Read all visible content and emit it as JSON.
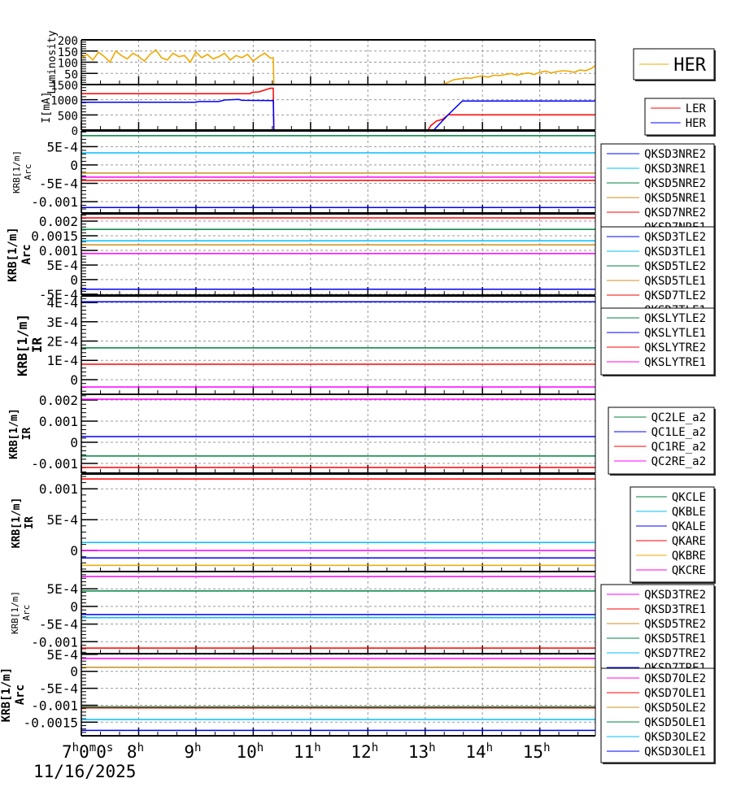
{
  "chart_data": {
    "type": "line",
    "title": "",
    "xlabel": "",
    "x_unit": "hour of day",
    "xlim": [
      7,
      15.97
    ],
    "date_label": "11/16/2025",
    "x_ticks": [
      {
        "v": 7,
        "parts": [
          [
            "7",
            "h"
          ],
          [
            "0",
            "m"
          ],
          [
            "0",
            "s"
          ]
        ]
      },
      {
        "v": 8,
        "parts": [
          [
            "8",
            "h"
          ]
        ]
      },
      {
        "v": 9,
        "parts": [
          [
            "9",
            "h"
          ]
        ]
      },
      {
        "v": 10,
        "parts": [
          [
            "10",
            "h"
          ]
        ]
      },
      {
        "v": 11,
        "parts": [
          [
            "11",
            "h"
          ]
        ]
      },
      {
        "v": 12,
        "parts": [
          [
            "12",
            "h"
          ]
        ]
      },
      {
        "v": 13,
        "parts": [
          [
            "13",
            "h"
          ]
        ]
      },
      {
        "v": 14,
        "parts": [
          [
            "14",
            "h"
          ]
        ]
      },
      {
        "v": 15,
        "parts": [
          [
            "15",
            "h"
          ]
        ]
      }
    ],
    "panels": [
      {
        "ylabel": [
          "Luminosity"
        ],
        "ylim": [
          0,
          200
        ],
        "yticks": [
          {
            "v": 200,
            "label": "200"
          },
          {
            "v": 150,
            "label": "150"
          },
          {
            "v": 100,
            "label": "100"
          },
          {
            "v": 50,
            "label": "50"
          }
        ],
        "series": [
          {
            "name": "HER",
            "color": "#f0a800",
            "x": [
              7.0,
              7.1,
              7.2,
              7.3,
              7.4,
              7.5,
              7.6,
              7.7,
              7.8,
              7.9,
              8.0,
              8.1,
              8.2,
              8.3,
              8.4,
              8.5,
              8.6,
              8.7,
              8.8,
              8.9,
              9.0,
              9.1,
              9.2,
              9.3,
              9.4,
              9.5,
              9.6,
              9.7,
              9.8,
              9.9,
              10.0,
              10.1,
              10.2,
              10.3,
              10.35,
              10.36,
              13.3,
              13.4,
              13.5,
              13.6,
              13.7,
              13.8,
              13.9,
              14.0,
              14.1,
              14.2,
              14.3,
              14.4,
              14.5,
              14.6,
              14.7,
              14.8,
              14.9,
              15.0,
              15.1,
              15.2,
              15.3,
              15.4,
              15.5,
              15.6,
              15.7,
              15.8,
              15.9,
              15.97
            ],
            "y": [
              120,
              135,
              110,
              145,
              125,
              100,
              150,
              130,
              115,
              140,
              125,
              105,
              135,
              155,
              120,
              110,
              140,
              125,
              130,
              100,
              145,
              120,
              135,
              115,
              125,
              140,
              110,
              130,
              120,
              135,
              105,
              125,
              140,
              118,
              120,
              0,
              0,
              10,
              22,
              25,
              30,
              28,
              35,
              38,
              33,
              42,
              40,
              45,
              50,
              42,
              48,
              52,
              45,
              55,
              60,
              52,
              58,
              62,
              60,
              55,
              65,
              62,
              72,
              85
            ]
          }
        ]
      },
      {
        "ylabel": [
          "I[mA]"
        ],
        "ylim": [
          0,
          1500
        ],
        "yticks": [
          {
            "v": 1500,
            "label": "1500"
          },
          {
            "v": 1000,
            "label": "1000"
          },
          {
            "v": 500,
            "label": "500"
          },
          {
            "v": 0,
            "label": "0"
          }
        ],
        "series": [
          {
            "name": "LER",
            "color": "#ff0000",
            "x": [
              7,
              9.95,
              9.97,
              10.1,
              10.3,
              10.35,
              10.36,
              13.05,
              13.1,
              13.2,
              13.3,
              13.4,
              15.97
            ],
            "y": [
              1200,
              1200,
              1240,
              1260,
              1380,
              1380,
              0,
              0,
              150,
              300,
              350,
              500,
              500
            ]
          },
          {
            "name": "HER",
            "color": "#0000ff",
            "x": [
              7,
              9.0,
              9.05,
              9.4,
              9.5,
              9.75,
              9.8,
              10.35,
              10.36,
              13.15,
              13.4,
              13.65,
              15.97
            ],
            "y": [
              920,
              920,
              940,
              940,
              990,
              1010,
              980,
              970,
              0,
              0,
              500,
              960,
              960
            ]
          }
        ]
      },
      {
        "ylabel": [
          "KRB[1/m]",
          "Arc"
        ],
        "ylim": [
          -0.00131,
          0.00093
        ],
        "yticks": [
          {
            "v": 0.0005,
            "label": "5E-4"
          },
          {
            "v": 0,
            "label": "0"
          },
          {
            "v": -0.0005,
            "label": "-5E-4"
          },
          {
            "v": -0.001,
            "label": "-0.001"
          }
        ],
        "series": [
          {
            "name": "QKSD3NRE2",
            "color": "#0000ff",
            "value": -0.00116
          },
          {
            "name": "QKSD3NRE1",
            "color": "#00bfff",
            "value": 0.00033
          },
          {
            "name": "QKSD5NRE2",
            "color": "#008040",
            "value": 0.0008
          },
          {
            "name": "QKSD5NRE1",
            "color": "#c89020",
            "value": -0.00022
          },
          {
            "name": "QKSD7NRE2",
            "color": "#ff0000",
            "value": -0.00042
          },
          {
            "name": "QKSD7NRE1",
            "color": "#ff00ff",
            "value": -0.00033
          }
        ]
      },
      {
        "ylabel": [
          "KRB[1/m]",
          "Arc"
        ],
        "ylim": [
          -0.00053,
          0.00225
        ],
        "yticks": [
          {
            "v": 0.002,
            "label": "0.002"
          },
          {
            "v": 0.0015,
            "label": "0.0015"
          },
          {
            "v": 0.001,
            "label": "0.001"
          },
          {
            "v": 0.0005,
            "label": "5E-4"
          },
          {
            "v": 0,
            "label": "0"
          },
          {
            "v": -0.0005,
            "label": "-5E-4"
          }
        ],
        "series": [
          {
            "name": "QKSD3TLE2",
            "color": "#0000ff",
            "value": -0.00033
          },
          {
            "name": "QKSD3TLE1",
            "color": "#00bfff",
            "value": 0.00133
          },
          {
            "name": "QKSD5TLE2",
            "color": "#008040",
            "value": 0.00172
          },
          {
            "name": "QKSD5TLE1",
            "color": "#c89020",
            "value": 0.00119
          },
          {
            "name": "QKSD7TLE2",
            "color": "#ff0000",
            "value": 0.00211
          },
          {
            "name": "QKSD7TLE1",
            "color": "#ff00ff",
            "value": 0.00089
          }
        ]
      },
      {
        "ylabel": [
          "KRB[1/m]",
          "IR"
        ],
        "ylim": [
          -7.6e-05,
          0.000434
        ],
        "yticks": [
          {
            "v": 0.0004,
            "label": "4E-4"
          },
          {
            "v": 0.0003,
            "label": "3E-4"
          },
          {
            "v": 0.0002,
            "label": "2E-4"
          },
          {
            "v": 0.0001,
            "label": "1E-4"
          },
          {
            "v": 0,
            "label": "0"
          }
        ],
        "series": [
          {
            "name": "QKSLYTLE2",
            "color": "#008040",
            "value": 0.000165
          },
          {
            "name": "QKSLYTLE1",
            "color": "#0000ff",
            "value": 0.000404
          },
          {
            "name": "QKSLYTRE2",
            "color": "#ff0000",
            "value": 8e-05
          },
          {
            "name": "QKSLYTRE1",
            "color": "#ff00ff",
            "value": -3.8e-05
          }
        ]
      },
      {
        "ylabel": [
          "KRB[1/m]",
          "IR"
        ],
        "ylim": [
          -0.00146,
          0.00227
        ],
        "yticks": [
          {
            "v": 0.002,
            "label": "0.002"
          },
          {
            "v": 0.001,
            "label": "0.001"
          },
          {
            "v": 0,
            "label": "0"
          },
          {
            "v": -0.001,
            "label": "-0.001"
          }
        ],
        "series": [
          {
            "name": "QC2LE_a2",
            "color": "#008040",
            "value": -0.00065
          },
          {
            "name": "QC1LE_a2",
            "color": "#0000ff",
            "value": 0.00027
          },
          {
            "name": "QC1RE_a2",
            "color": "#ff0000",
            "value": -0.00119
          },
          {
            "name": "QC2RE_a2",
            "color": "#ff00ff",
            "value": 0.00204
          }
        ]
      },
      {
        "ylabel": [
          "KRB[1/m]",
          "IR"
        ],
        "ylim": [
          -0.00034,
          0.00124
        ],
        "yticks": [
          {
            "v": 0.001,
            "label": "0.001"
          },
          {
            "v": 0.0005,
            "label": "5E-4"
          },
          {
            "v": 0,
            "label": "0"
          }
        ],
        "series": [
          {
            "name": "QKCLE",
            "color": "#008040",
            "value": null
          },
          {
            "name": "QKBLE",
            "color": "#00bfff",
            "value": 0.00013
          },
          {
            "name": "QKALE",
            "color": "#0000ff",
            "value": -0.00012
          },
          {
            "name": "QKARE",
            "color": "#ff0000",
            "value": 0.00116
          },
          {
            "name": "QKBRE",
            "color": "#f0a800",
            "value": -0.00024
          },
          {
            "name": "QKCRE",
            "color": "#ff00ff",
            "value": 0
          }
        ]
      },
      {
        "ylabel": [
          "KRB[1/m]",
          "Arc"
        ],
        "ylim": [
          -0.00134,
          0.00099
        ],
        "yticks": [
          {
            "v": 0.0005,
            "label": "5E-4"
          },
          {
            "v": 0,
            "label": "0"
          },
          {
            "v": -0.0005,
            "label": "-5E-4"
          },
          {
            "v": -0.001,
            "label": "-0.001"
          }
        ],
        "series": [
          {
            "name": "QKSD3TRE2",
            "color": "#ff00ff",
            "value": 0.00085
          },
          {
            "name": "QKSD3TRE1",
            "color": "#ff0000",
            "value": -0.00118
          },
          {
            "name": "QKSD5TRE2",
            "color": "#c89020",
            "value": null
          },
          {
            "name": "QKSD5TRE1",
            "color": "#008040",
            "value": 0.00044
          },
          {
            "name": "QKSD7TRE2",
            "color": "#00bfff",
            "value": -0.00032
          },
          {
            "name": "QKSD7TRE1",
            "color": "#0000ff",
            "value": -0.00023
          }
        ]
      },
      {
        "ylabel": [
          "KRB[1/m]",
          "Arc"
        ],
        "ylim": [
          -0.0019,
          0.00052
        ],
        "yticks": [
          {
            "v": 0.0005,
            "label": "5E-4"
          },
          {
            "v": 0,
            "label": "0"
          },
          {
            "v": -0.0005,
            "label": "-5E-4"
          },
          {
            "v": -0.001,
            "label": "-0.001"
          },
          {
            "v": -0.0015,
            "label": "-0.0015"
          }
        ],
        "series": [
          {
            "name": "QKSD7OLE2",
            "color": "#ff00ff",
            "value": 0.00038
          },
          {
            "name": "QKSD7OLE1",
            "color": "#ff0000",
            "value": -0.00108
          },
          {
            "name": "QKSD5OLE2",
            "color": "#c89020",
            "value": 0.00012
          },
          {
            "name": "QKSD5OLE1",
            "color": "#008040",
            "value": -0.00105
          },
          {
            "name": "QKSD3OLE2",
            "color": "#00bfff",
            "value": -0.00142
          },
          {
            "name": "QKSD3OLE1",
            "color": "#0000ff",
            "value": -0.00174
          }
        ]
      }
    ]
  }
}
